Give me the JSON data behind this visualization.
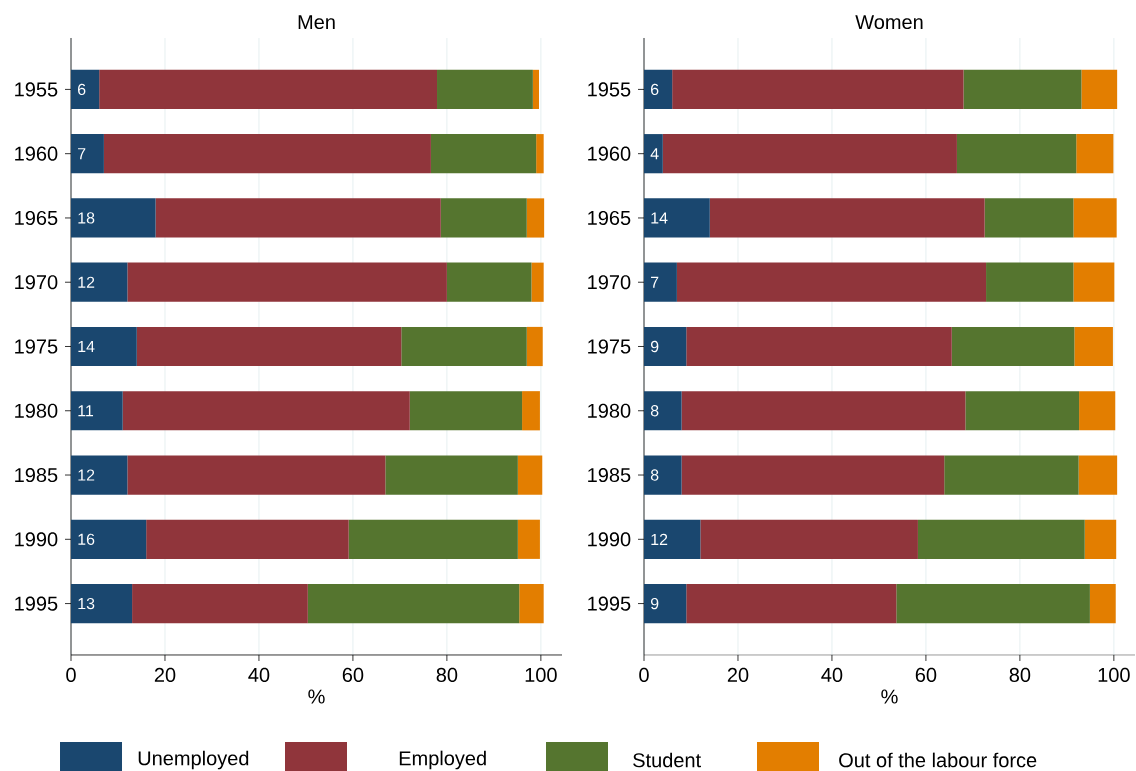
{
  "chart_data": [
    {
      "type": "bar",
      "orientation": "horizontal",
      "stacked": true,
      "title": "Men",
      "xlabel": "%",
      "categories": [
        "1955",
        "1960",
        "1965",
        "1970",
        "1975",
        "1980",
        "1985",
        "1990",
        "1995"
      ],
      "xlim": [
        0,
        104.5
      ],
      "xticks": [
        0,
        20,
        40,
        60,
        80,
        100
      ],
      "grid": "x",
      "legend": "bottom",
      "series": [
        {
          "name": "Unemployed",
          "color": "#1a476f",
          "values": [
            6,
            7,
            18,
            12,
            14,
            11,
            12,
            16,
            13
          ],
          "value_labels": [
            "6",
            "7",
            "18",
            "12",
            "14",
            "11",
            "12",
            "16",
            "13"
          ]
        },
        {
          "name": "Employed",
          "color": "#90353b",
          "values": [
            71.9,
            69.6,
            60.7,
            68.0,
            56.3,
            61.1,
            54.9,
            43.1,
            37.4
          ]
        },
        {
          "name": "Student",
          "color": "#55752f",
          "values": [
            20.4,
            22.4,
            18.3,
            18.0,
            26.7,
            23.9,
            28.2,
            36.0,
            45.0
          ]
        },
        {
          "name": "Out of the labour force",
          "color": "#e37e00",
          "values": [
            1.3,
            1.6,
            3.7,
            2.6,
            3.4,
            3.8,
            5.2,
            4.7,
            5.2
          ]
        }
      ]
    },
    {
      "type": "bar",
      "orientation": "horizontal",
      "stacked": true,
      "title": "Women",
      "xlabel": "%",
      "categories": [
        "1955",
        "1960",
        "1965",
        "1970",
        "1975",
        "1980",
        "1985",
        "1990",
        "1995"
      ],
      "xlim": [
        0,
        104.5
      ],
      "xticks": [
        0,
        20,
        40,
        60,
        80,
        100
      ],
      "grid": "x",
      "series": [
        {
          "color": "#1a476f",
          "values": [
            6,
            4,
            14,
            7,
            9,
            8,
            8,
            12,
            9
          ],
          "value_labels": [
            "6",
            "4",
            "14",
            "7",
            "9",
            "8",
            "8",
            "12",
            "9"
          ]
        },
        {
          "color": "#90353b",
          "values": [
            62.0,
            62.6,
            58.5,
            65.8,
            56.5,
            60.4,
            55.9,
            46.3,
            44.7
          ]
        },
        {
          "color": "#55752f",
          "values": [
            25.1,
            25.4,
            18.9,
            18.6,
            26.1,
            24.2,
            28.6,
            35.5,
            41.2
          ]
        },
        {
          "color": "#e37e00",
          "values": [
            7.6,
            7.9,
            9.2,
            8.7,
            8.2,
            7.7,
            8.2,
            6.7,
            5.5
          ]
        }
      ]
    }
  ]
}
